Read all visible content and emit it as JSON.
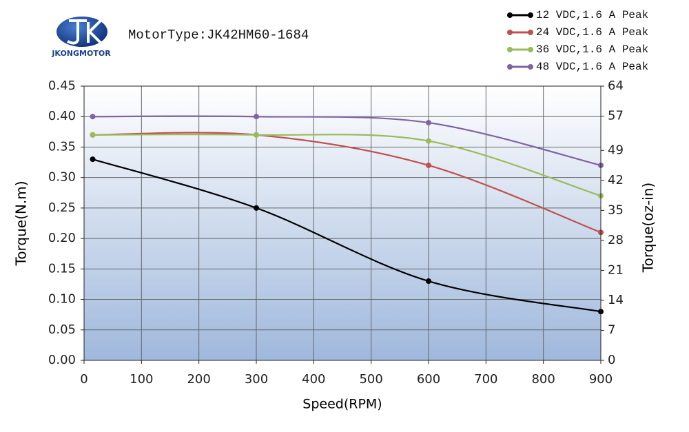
{
  "logo_text": "JKONGMOTOR",
  "chart_data": {
    "type": "line",
    "title": "MotorType:JK42HM60-1684",
    "x_label": "Speed(RPM)",
    "y_label": "Torque(N.m)",
    "y2_label": "Torque(oz-in)",
    "x": [
      15,
      300,
      600,
      900
    ],
    "xlim": [
      0,
      900
    ],
    "xticks": [
      0,
      100,
      200,
      300,
      400,
      500,
      600,
      700,
      800,
      900
    ],
    "ylim": [
      0,
      0.45
    ],
    "yticks": [
      {
        "value": 0,
        "label": "0.00"
      },
      {
        "value": 0.05,
        "label": "0.05"
      },
      {
        "value": 0.1,
        "label": "0.10"
      },
      {
        "value": 0.15,
        "label": "0.15"
      },
      {
        "value": 0.2,
        "label": "0.20"
      },
      {
        "value": 0.25,
        "label": "0.25"
      },
      {
        "value": 0.3,
        "label": "0.30"
      },
      {
        "value": 0.35,
        "label": "0.35"
      },
      {
        "value": 0.4,
        "label": "0.40"
      },
      {
        "value": 0.45,
        "label": "0.45"
      }
    ],
    "y2lim": [
      0,
      64
    ],
    "y2ticks": [
      0,
      7,
      14,
      21,
      28,
      35,
      42,
      49,
      57,
      64
    ],
    "grid": true,
    "legend": "top-right",
    "series": [
      {
        "name": "12 VDC,1.6 A Peak",
        "color": "#000000",
        "values": [
          0.33,
          0.25,
          0.13,
          0.08
        ]
      },
      {
        "name": "24 VDC,1.6 A Peak",
        "color": "#c0504d",
        "values": [
          0.37,
          0.37,
          0.32,
          0.21
        ]
      },
      {
        "name": "36 VDC,1.6 A Peak",
        "color": "#9bbb59",
        "values": [
          0.37,
          0.37,
          0.36,
          0.27
        ]
      },
      {
        "name": "48 VDC,1.6 A Peak",
        "color": "#8064a2",
        "values": [
          0.4,
          0.4,
          0.39,
          0.32
        ]
      }
    ]
  }
}
